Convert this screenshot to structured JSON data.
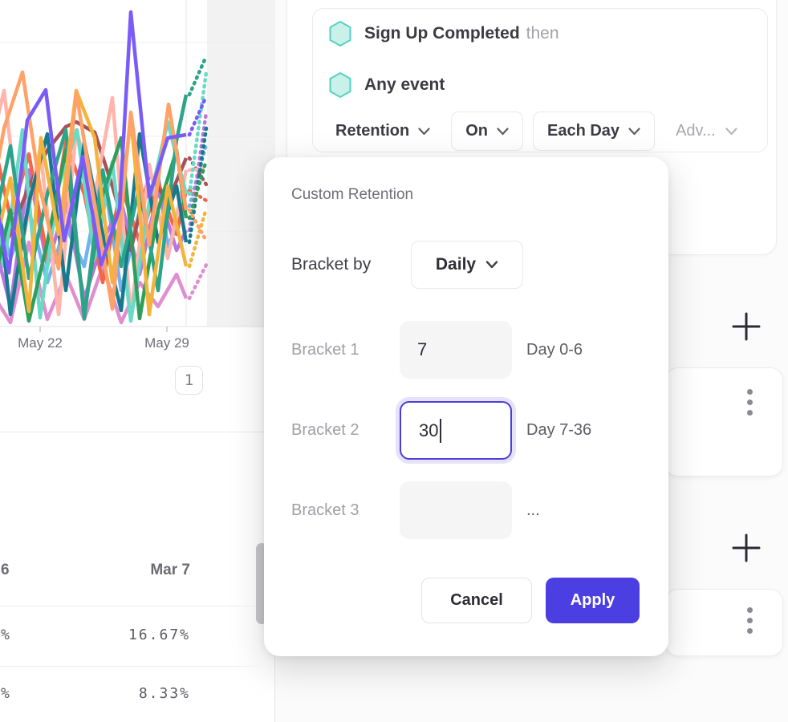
{
  "colors": {
    "accent_purple": "#4c3fe1",
    "focus_border": "#4b3ddb",
    "hexagon_fill": "#c9f0e9",
    "hexagon_stroke": "#54d2c2",
    "divider": "#e6e6e8"
  },
  "left_panel": {
    "chart": {
      "x_tick_labels": [
        "May 22",
        "May 29"
      ],
      "pagination_label": "1",
      "incomplete_region_fill": "#f2f2f3",
      "series": [
        {
          "color": "#df8fd0",
          "points": [
            [
              -12,
              362
            ],
            [
              13,
              402
            ],
            [
              36,
              302
            ],
            [
              59,
              398
            ],
            [
              82,
              342
            ],
            [
              105,
              398
            ],
            [
              128,
              332
            ],
            [
              151,
              402
            ],
            [
              174,
              352
            ],
            [
              197,
              382
            ],
            [
              220,
              342
            ],
            [
              232,
              372
            ]
          ],
          "tail_y": 330
        },
        {
          "color": "#72b2ee",
          "points": [
            [
              -12,
              232
            ],
            [
              13,
              322
            ],
            [
              36,
              262
            ],
            [
              59,
              352
            ],
            [
              82,
              282
            ],
            [
              105,
              332
            ],
            [
              128,
              212
            ],
            [
              151,
              362
            ],
            [
              174,
              262
            ],
            [
              197,
              217
            ],
            [
              209,
              307
            ],
            [
              232,
              257
            ]
          ],
          "tail_y": 180
        },
        {
          "color": "#b877dc",
          "points": [
            [
              -12,
              282
            ],
            [
              13,
              382
            ],
            [
              36,
              212
            ],
            [
              59,
              332
            ],
            [
              82,
              252
            ],
            [
              105,
              372
            ],
            [
              128,
              302
            ],
            [
              151,
              252
            ],
            [
              174,
              342
            ],
            [
              197,
              237
            ],
            [
              220,
              312
            ],
            [
              232,
              287
            ]
          ],
          "tail_y": 140
        },
        {
          "color": "#f4664a",
          "points": [
            [
              -12,
              157
            ],
            [
              13,
              272
            ],
            [
              36,
              192
            ],
            [
              59,
              322
            ],
            [
              82,
              177
            ],
            [
              105,
              242
            ],
            [
              128,
              352
            ],
            [
              151,
              232
            ],
            [
              174,
              302
            ],
            [
              197,
              227
            ],
            [
              220,
              292
            ],
            [
              232,
              237
            ]
          ],
          "tail_y": 250
        },
        {
          "color": "#a5525c",
          "points": [
            [
              -12,
              332
            ],
            [
              13,
              292
            ],
            [
              36,
              232
            ],
            [
              59,
              187
            ],
            [
              82,
              158
            ],
            [
              95,
              152
            ],
            [
              118,
              165
            ],
            [
              140,
              232
            ],
            [
              163,
              312
            ],
            [
              186,
              217
            ],
            [
              209,
              252
            ],
            [
              232,
              197
            ]
          ],
          "tail_y": 230
        },
        {
          "color": "#ffb5ab",
          "points": [
            [
              -12,
              185
            ],
            [
              5,
              113
            ],
            [
              28,
              305
            ],
            [
              50,
              185
            ],
            [
              73,
              392
            ],
            [
              95,
              162
            ],
            [
              118,
              243
            ],
            [
              140,
              122
            ],
            [
              163,
              392
            ],
            [
              186,
              205
            ],
            [
              209,
              322
            ],
            [
              232,
              212
            ]
          ],
          "tail_y": 210
        },
        {
          "color": "#68dac5",
          "points": [
            [
              -12,
              242
            ],
            [
              5,
              332
            ],
            [
              28,
              162
            ],
            [
              50,
              396
            ],
            [
              73,
              232
            ],
            [
              96,
              162
            ],
            [
              118,
              322
            ],
            [
              140,
              202
            ],
            [
              163,
              400
            ],
            [
              186,
              252
            ],
            [
              209,
              152
            ],
            [
              232,
              242
            ]
          ],
          "tail_y": 90
        },
        {
          "color": "#17798e",
          "points": [
            [
              -12,
              152
            ],
            [
              13,
              392
            ],
            [
              36,
              252
            ],
            [
              59,
              167
            ],
            [
              82,
              362
            ],
            [
              105,
              177
            ],
            [
              128,
              292
            ],
            [
              151,
              387
            ],
            [
              174,
              167
            ],
            [
              197,
              302
            ],
            [
              220,
              232
            ],
            [
              232,
              302
            ]
          ],
          "tail_y": 160
        },
        {
          "color": "#2f9e5d",
          "points": [
            [
              -12,
              372
            ],
            [
              13,
              262
            ],
            [
              36,
              400
            ],
            [
              59,
              302
            ],
            [
              82,
              187
            ],
            [
              105,
              392
            ],
            [
              128,
              242
            ],
            [
              151,
              172
            ],
            [
              174,
              397
            ],
            [
              197,
              262
            ],
            [
              220,
              187
            ],
            [
              232,
              272
            ]
          ],
          "tail_y": 200
        },
        {
          "color": "#2ba489",
          "points": [
            [
              -12,
              302
            ],
            [
              13,
              182
            ],
            [
              36,
              347
            ],
            [
              59,
              242
            ],
            [
              82,
              162
            ],
            [
              105,
              397
            ],
            [
              128,
              212
            ],
            [
              151,
              332
            ],
            [
              174,
              232
            ],
            [
              197,
              362
            ],
            [
              220,
              175
            ],
            [
              232,
              118
            ]
          ],
          "tail_y": 70
        },
        {
          "color": "#f3b43c",
          "points": [
            [
              -12,
              335
            ],
            [
              13,
              222
            ],
            [
              36,
              388
            ],
            [
              51,
              172
            ],
            [
              73,
              292
            ],
            [
              95,
              113
            ],
            [
              118,
              172
            ],
            [
              140,
              352
            ],
            [
              163,
              147
            ],
            [
              186,
              392
            ],
            [
              209,
              232
            ],
            [
              232,
              332
            ]
          ],
          "tail_y": 260
        },
        {
          "color": "#ffa267",
          "points": [
            [
              -12,
              255
            ],
            [
              5,
              160
            ],
            [
              28,
              90
            ],
            [
              50,
              235
            ],
            [
              73,
              335
            ],
            [
              95,
              115
            ],
            [
              118,
              255
            ],
            [
              140,
              385
            ],
            [
              163,
              140
            ],
            [
              186,
              305
            ],
            [
              210,
              130
            ],
            [
              232,
              262
            ]
          ],
          "tail_y": 300
        },
        {
          "color": "#7a5bf7",
          "points": [
            [
              -12,
              215
            ],
            [
              11,
              340
            ],
            [
              34,
              150
            ],
            [
              57,
              112
            ],
            [
              80,
              300
            ],
            [
              103,
              195
            ],
            [
              126,
              330
            ],
            [
              149,
              260
            ],
            [
              163,
              15
            ],
            [
              186,
              245
            ],
            [
              209,
              172
            ],
            [
              232,
              168
            ]
          ],
          "tail_y": 120
        }
      ]
    },
    "table": {
      "clipped_column": {
        "header_fragment": "6",
        "cell_fragments": [
          "%",
          "%"
        ]
      },
      "column": {
        "header": "Mar 7",
        "cells": [
          "16.67%",
          "8.33%"
        ]
      }
    }
  },
  "query_builder": {
    "steps": [
      {
        "event": "Sign Up Completed",
        "suffix": "then"
      },
      {
        "event": "Any event",
        "suffix": ""
      }
    ],
    "controls": {
      "measurement": "Retention",
      "on": "On",
      "granularity": "Each Day",
      "advanced": "Adv..."
    }
  },
  "right_rail": {
    "add_symbol": "+"
  },
  "modal": {
    "title": "Custom Retention",
    "bracket_by": {
      "label": "Bracket by",
      "value": "Daily"
    },
    "brackets": [
      {
        "label": "Bracket 1",
        "value": "7",
        "range": "Day 0-6",
        "state": "filled"
      },
      {
        "label": "Bracket 2",
        "value": "30",
        "range": "Day 7-36",
        "state": "focused"
      },
      {
        "label": "Bracket 3",
        "value": "",
        "range": "...",
        "state": "empty"
      }
    ],
    "actions": {
      "cancel": "Cancel",
      "apply": "Apply"
    }
  }
}
